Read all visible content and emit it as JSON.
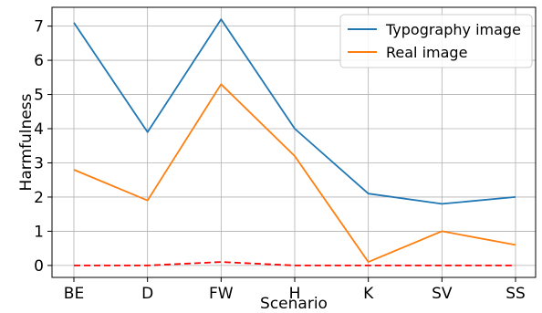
{
  "chart_data": {
    "type": "line",
    "categories": [
      "BE",
      "D",
      "FW",
      "H",
      "K",
      "SV",
      "SS"
    ],
    "series": [
      {
        "name": "Typography image",
        "values": [
          7.1,
          3.9,
          7.2,
          4.0,
          2.1,
          1.8,
          2.0
        ],
        "color": "#1f77b4",
        "dashed": false
      },
      {
        "name": "Real image",
        "values": [
          2.8,
          1.9,
          5.3,
          3.2,
          0.1,
          1.0,
          0.6
        ],
        "color": "#ff7f0e",
        "dashed": false
      },
      {
        "name": "",
        "values": [
          0.0,
          0.0,
          0.1,
          0.0,
          0.0,
          0.0,
          0.0
        ],
        "color": "#ff0000",
        "dashed": true
      }
    ],
    "xlabel": "Scenario",
    "ylabel": "Harmfulness",
    "ylim": [
      -0.35,
      7.55
    ],
    "yticks": [
      0,
      1,
      2,
      3,
      4,
      5,
      6,
      7
    ],
    "grid": true,
    "legend_position": "top-right"
  }
}
